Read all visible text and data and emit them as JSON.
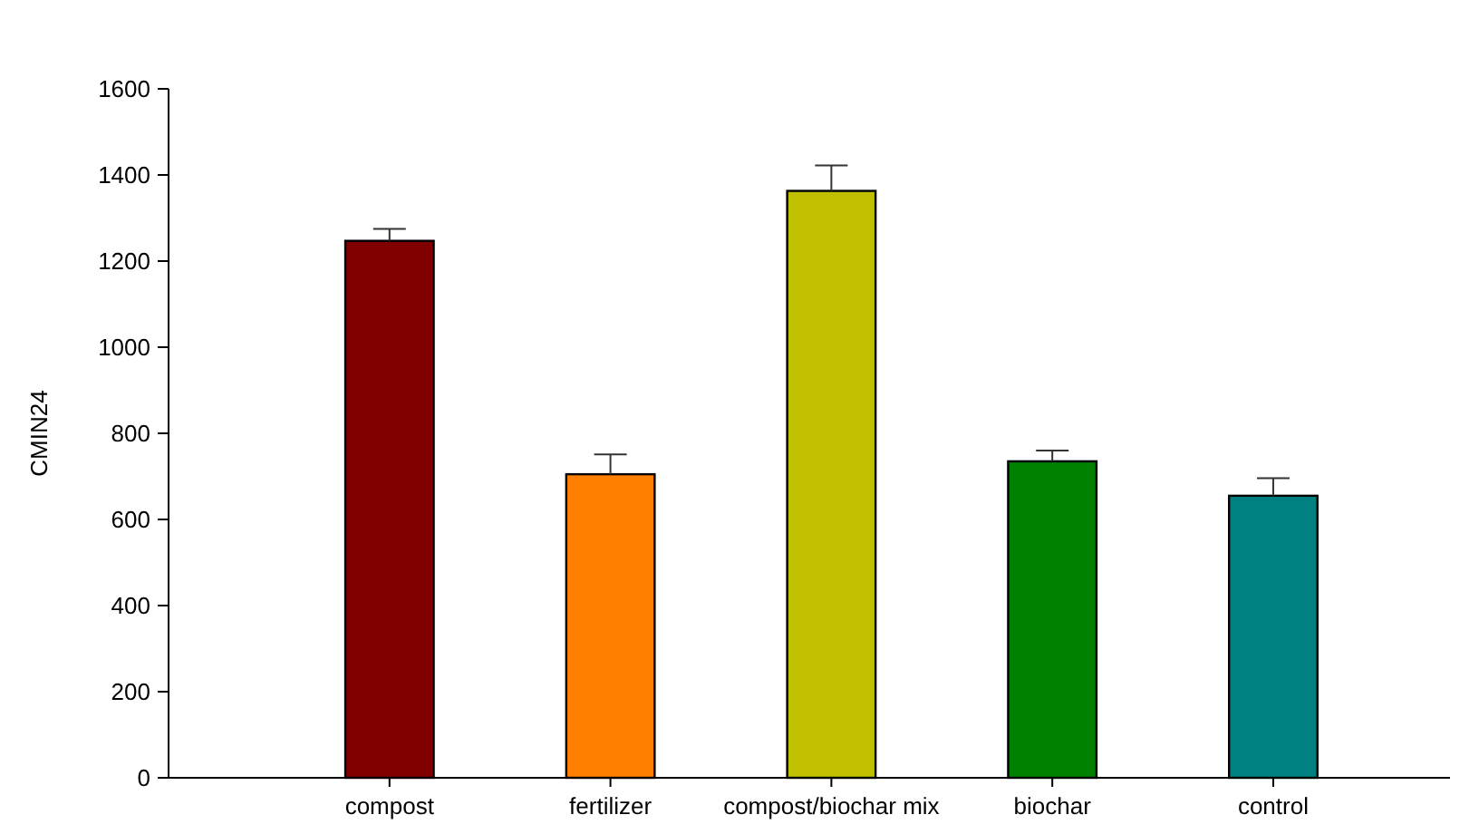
{
  "chart_data": {
    "type": "bar",
    "ylabel": "CMIN24",
    "categories": [
      "compost",
      "fertilizer",
      "compost/biochar mix",
      "biochar",
      "control"
    ],
    "values": [
      1247,
      705,
      1363,
      735,
      655
    ],
    "errors": [
      [
        1247,
        1275
      ],
      [
        705,
        751
      ],
      [
        1363,
        1422
      ],
      [
        735,
        760
      ],
      [
        655,
        696
      ]
    ],
    "colors": [
      "#800000",
      "#ff8000",
      "#c0c000",
      "#008000",
      "#008080"
    ],
    "ylim": [
      0,
      1600
    ],
    "yticks": [
      0,
      200,
      400,
      600,
      800,
      1000,
      1200,
      1400,
      1600
    ]
  }
}
